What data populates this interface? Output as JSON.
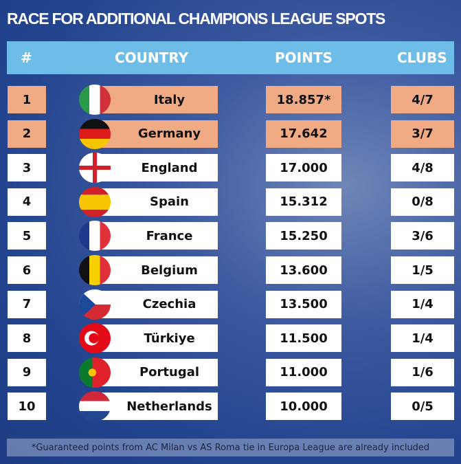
{
  "title": "RACE FOR ADDITIONAL CHAMPIONS LEAGUE SPOTS",
  "headers": {
    "rank": "#",
    "country": "COUNTRY",
    "points": "POINTS",
    "clubs": "CLUBS"
  },
  "colors": {
    "header": "#6ebde8",
    "highlight": "#f0ab85"
  },
  "rows": [
    {
      "rank": "1",
      "country": "Italy",
      "points": "18.857*",
      "clubs": "4/7",
      "highlight": true,
      "flag": "italy-flag-icon"
    },
    {
      "rank": "2",
      "country": "Germany",
      "points": "17.642",
      "clubs": "3/7",
      "highlight": true,
      "flag": "germany-flag-icon"
    },
    {
      "rank": "3",
      "country": "England",
      "points": "17.000",
      "clubs": "4/8",
      "highlight": false,
      "flag": "england-flag-icon"
    },
    {
      "rank": "4",
      "country": "Spain",
      "points": "15.312",
      "clubs": "0/8",
      "highlight": false,
      "flag": "spain-flag-icon"
    },
    {
      "rank": "5",
      "country": "France",
      "points": "15.250",
      "clubs": "3/6",
      "highlight": false,
      "flag": "france-flag-icon"
    },
    {
      "rank": "6",
      "country": "Belgium",
      "points": "13.600",
      "clubs": "1/5",
      "highlight": false,
      "flag": "belgium-flag-icon"
    },
    {
      "rank": "7",
      "country": "Czechia",
      "points": "13.500",
      "clubs": "1/4",
      "highlight": false,
      "flag": "czechia-flag-icon"
    },
    {
      "rank": "8",
      "country": "Türkiye",
      "points": "11.500",
      "clubs": "1/4",
      "highlight": false,
      "flag": "turkiye-flag-icon"
    },
    {
      "rank": "9",
      "country": "Portugal",
      "points": "11.000",
      "clubs": "1/6",
      "highlight": false,
      "flag": "portugal-flag-icon"
    },
    {
      "rank": "10",
      "country": "Netherlands",
      "points": "10.000",
      "clubs": "0/5",
      "highlight": false,
      "flag": "netherlands-flag-icon"
    }
  ],
  "footnote": "*Guaranteed points from AC Milan vs AS Roma tie in Europa League are already included"
}
